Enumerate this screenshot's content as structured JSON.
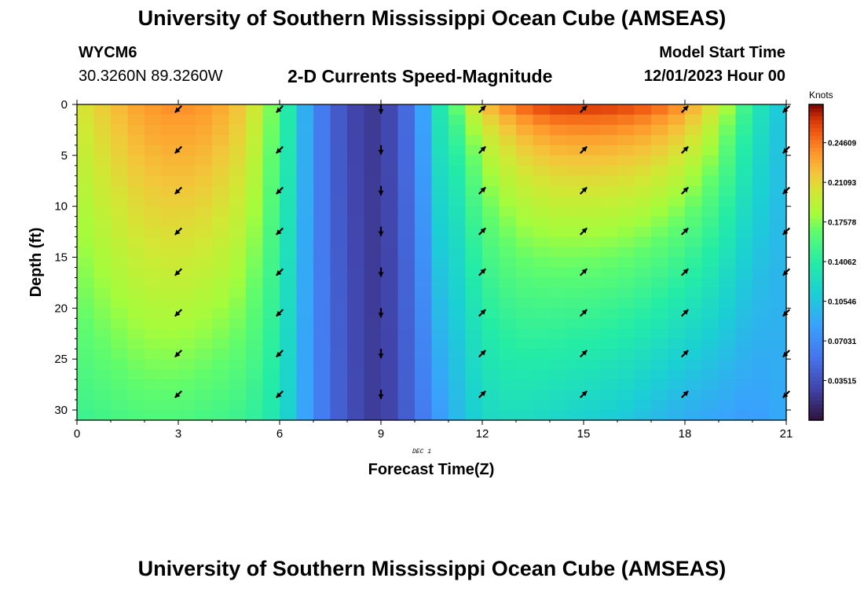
{
  "header": {
    "title": "University of Southern Mississippi Ocean Cube (AMSEAS)",
    "station_id": "WYCM6",
    "coords": "30.3260N  89.3260W",
    "plot_title": "2-D Currents Speed-Magnitude",
    "model_start_label": "Model Start Time",
    "model_start_value": "12/01/2023 Hour 00"
  },
  "footer": {
    "title": "University of Southern Mississippi Ocean Cube (AMSEAS)"
  },
  "colors": {
    "background": "#ffffff",
    "arrow": "#000000"
  },
  "chart_data": {
    "type": "heatmap",
    "title": "2-D Currents Speed-Magnitude",
    "xlabel": "Forecast Time(Z)",
    "ylabel": "Depth (ft)",
    "date_label": "DEC 1",
    "xlim": [
      0,
      21
    ],
    "ylim": [
      31,
      0
    ],
    "xticks": [
      0,
      3,
      6,
      9,
      12,
      15,
      18,
      21
    ],
    "yticks": [
      0,
      5,
      10,
      15,
      20,
      25,
      30
    ],
    "colorbar": {
      "label": "Knots",
      "ticks": [
        "0.24609",
        "0.21093",
        "0.17578",
        "0.14062",
        "0.10546",
        "0.07031",
        "0.03515"
      ],
      "tick_values": [
        0.24609,
        0.21093,
        0.17578,
        0.14062,
        0.10546,
        0.07031,
        0.03515
      ],
      "range": [
        0.0,
        0.28
      ]
    },
    "profile_hours": [
      0,
      1,
      2,
      3,
      4,
      5,
      6,
      7,
      8,
      9,
      10,
      11,
      12,
      13,
      14,
      15,
      16,
      17,
      18,
      19,
      20,
      21
    ],
    "surface_speed_knots": [
      0.2,
      0.22,
      0.235,
      0.24,
      0.235,
      0.215,
      0.16,
      0.07,
      0.03,
      0.02,
      0.06,
      0.16,
      0.23,
      0.26,
      0.275,
      0.275,
      0.27,
      0.26,
      0.24,
      0.2,
      0.14,
      0.1
    ],
    "bottom_speed_knots": [
      0.15,
      0.155,
      0.16,
      0.16,
      0.155,
      0.15,
      0.13,
      0.07,
      0.035,
      0.02,
      0.05,
      0.09,
      0.12,
      0.125,
      0.12,
      0.115,
      0.11,
      0.1,
      0.09,
      0.085,
      0.08,
      0.09
    ],
    "arrows": {
      "hours": [
        3,
        6,
        9,
        12,
        15,
        18,
        21
      ],
      "depths_ft": [
        0,
        4,
        8,
        12,
        16,
        20,
        24,
        28
      ],
      "direction_deg_by_hour": [
        225,
        225,
        180,
        45,
        45,
        45,
        225
      ]
    }
  }
}
